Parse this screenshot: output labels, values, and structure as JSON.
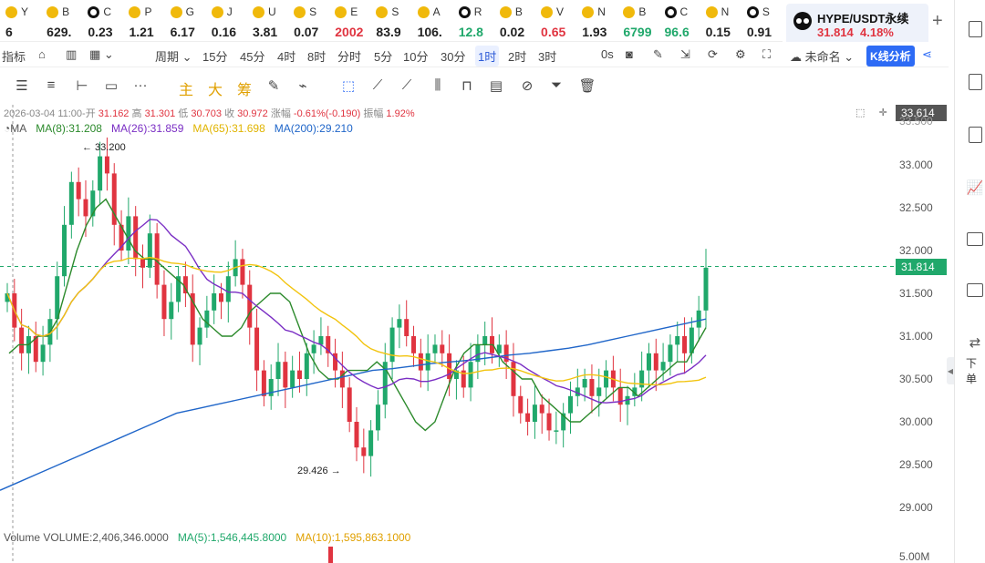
{
  "tickers": [
    {
      "sym": "Y",
      "val": "6",
      "icon": "gold",
      "trend": "nt"
    },
    {
      "sym": "B",
      "val": "629.",
      "icon": "gold",
      "trend": "nt"
    },
    {
      "sym": "C",
      "val": "0.23",
      "icon": "blk",
      "trend": "nt"
    },
    {
      "sym": "P",
      "val": "1.21",
      "icon": "gold",
      "trend": "nt"
    },
    {
      "sym": "G",
      "val": "6.17",
      "icon": "gold",
      "trend": "nt"
    },
    {
      "sym": "J",
      "val": "0.16",
      "icon": "gold",
      "trend": "nt"
    },
    {
      "sym": "U",
      "val": "3.81",
      "icon": "gold",
      "trend": "nt"
    },
    {
      "sym": "S",
      "val": "0.07",
      "icon": "gold",
      "trend": "nt"
    },
    {
      "sym": "E",
      "val": "2002",
      "icon": "gold",
      "trend": "dn"
    },
    {
      "sym": "S",
      "val": "83.9",
      "icon": "gold",
      "trend": "nt"
    },
    {
      "sym": "A",
      "val": "106.",
      "icon": "gold",
      "trend": "nt"
    },
    {
      "sym": "R",
      "val": "12.8",
      "icon": "blk",
      "trend": "up"
    },
    {
      "sym": "B",
      "val": "0.02",
      "icon": "gold",
      "trend": "nt"
    },
    {
      "sym": "V",
      "val": "0.65",
      "icon": "gold",
      "trend": "dn"
    },
    {
      "sym": "N",
      "val": "1.93",
      "icon": "gold",
      "trend": "nt"
    },
    {
      "sym": "B",
      "val": "6799",
      "icon": "gold",
      "trend": "up"
    },
    {
      "sym": "C",
      "val": "96.6",
      "icon": "blk",
      "trend": "up"
    },
    {
      "sym": "N",
      "val": "0.15",
      "icon": "gold",
      "trend": "nt"
    },
    {
      "sym": "S",
      "val": "0.91",
      "icon": "blk",
      "trend": "nt"
    }
  ],
  "active_tab": {
    "pair": "HYPE/USDT永续",
    "price": "31.814",
    "change": "4.18%"
  },
  "toolbar": {
    "indicators": "指标",
    "period": "周期",
    "intervals": [
      "15分",
      "45分",
      "4时",
      "8时",
      "分时",
      "5分",
      "10分",
      "30分",
      "1时",
      "2时",
      "3时"
    ],
    "active_interval": "1时",
    "seconds": "0s",
    "layout_name": "未命名",
    "kline_analysis": "K线分析"
  },
  "drawing_tools": {
    "main": "主",
    "big": "大",
    "chip": "筹"
  },
  "ohlc": {
    "datetime": "2026-03-04 11:00",
    "open_label": "开",
    "open": "31.162",
    "high_label": "高",
    "high": "31.301",
    "low_label": "低",
    "low": "30.703",
    "close_label": "收",
    "close": "30.972",
    "change_label": "涨幅",
    "change": "-0.61%(-0.190)",
    "amp_label": "振幅",
    "amp": "1.92%"
  },
  "ma_legend": {
    "title": "MA",
    "ma8": "MA(8):31.208",
    "ma26": "MA(26):31.859",
    "ma65": "MA(65):31.698",
    "ma200": "MA(200):29.210"
  },
  "volume_legend": {
    "volume": "Volume  VOLUME:2,406,346.0000",
    "ma5": "MA(5):1,546,445.8000",
    "ma10": "MA(10):1,595,863.1000"
  },
  "annotations": {
    "high": "← 33.200",
    "low": "29.426 →"
  },
  "price_axis": {
    "labels": [
      "33.000",
      "32.500",
      "32.000",
      "31.500",
      "31.000",
      "30.500",
      "30.000",
      "29.500",
      "29.000"
    ],
    "top_clipped": "33.500",
    "volume_label": "5.00M",
    "crosshair_price": "33.614",
    "last_price": "31.814"
  },
  "sidebar": {
    "order_label": "下单"
  },
  "colors": {
    "up": "#20a86b",
    "down": "#e03440",
    "ma8": "#2c8a2c",
    "ma26": "#7a2ec4",
    "ma65": "#f2c40f",
    "ma200": "#2066c9",
    "accent": "#2d6bf5"
  },
  "chart_data": {
    "type": "candlestick",
    "interval": "1h",
    "ylim": [
      28.9,
      33.6
    ],
    "annotated_high": 33.2,
    "annotated_low": 29.426,
    "last_price": 31.814,
    "candles_close": [
      31.5,
      31.1,
      30.8,
      31.0,
      30.7,
      30.9,
      31.2,
      31.7,
      32.3,
      32.8,
      32.6,
      32.4,
      32.7,
      33.1,
      32.9,
      32.3,
      32.0,
      32.4,
      31.9,
      31.8,
      32.2,
      31.6,
      31.2,
      31.4,
      31.7,
      31.5,
      30.9,
      31.1,
      31.3,
      31.5,
      31.4,
      31.7,
      31.9,
      31.6,
      31.1,
      30.6,
      30.3,
      30.5,
      30.7,
      30.4,
      30.6,
      30.5,
      30.8,
      30.9,
      31.0,
      30.8,
      30.6,
      30.4,
      30.0,
      29.7,
      29.6,
      29.9,
      30.2,
      30.7,
      31.1,
      31.2,
      31.0,
      30.8,
      30.6,
      30.8,
      30.9,
      30.8,
      30.5,
      30.6,
      30.4,
      30.7,
      30.9,
      31.0,
      30.8,
      30.9,
      30.7,
      30.3,
      30.1,
      30.0,
      30.2,
      30.1,
      29.9,
      29.9,
      30.1,
      30.3,
      30.4,
      30.5,
      30.3,
      30.4,
      30.6,
      30.4,
      30.2,
      30.3,
      30.4,
      30.6,
      30.8,
      30.6,
      30.7,
      30.9,
      31.0,
      30.8,
      31.1,
      31.3,
      31.8
    ],
    "ma8": [
      30.8,
      30.9,
      30.9,
      31.0,
      31.0,
      31.2,
      31.6,
      32.0,
      32.3,
      32.5,
      32.6,
      32.4,
      32.2,
      32.0,
      31.9,
      31.9,
      31.8,
      31.7,
      31.6,
      31.4,
      31.2,
      31.1,
      31.0,
      31.0,
      31.1,
      31.3,
      31.4,
      31.5,
      31.5,
      31.4,
      31.1,
      30.8,
      30.6,
      30.5,
      30.5,
      30.6,
      30.6,
      30.6,
      30.7,
      30.6,
      30.4,
      30.2,
      30.0,
      29.9,
      30.0,
      30.3,
      30.6,
      30.8,
      30.9,
      30.9,
      30.9,
      30.7,
      30.6,
      30.5,
      30.5,
      30.3,
      30.2,
      30.1,
      30.0,
      30.0,
      30.1,
      30.2,
      30.3,
      30.4,
      30.4,
      30.3,
      30.4,
      30.5,
      30.6,
      30.7,
      30.7,
      30.9,
      31.1
    ],
    "ma200": [
      29.2,
      29.3,
      29.4,
      29.5,
      29.6,
      29.7,
      29.8,
      29.9,
      30.0,
      30.1,
      30.15,
      30.2,
      30.25,
      30.3,
      30.35,
      30.4,
      30.45,
      30.5,
      30.55,
      30.6,
      30.62,
      30.65,
      30.68,
      30.7,
      30.72,
      30.75,
      30.78,
      30.8,
      30.83,
      30.86,
      30.9,
      30.95,
      31.0,
      31.05,
      31.1,
      31.15,
      31.2
    ]
  }
}
